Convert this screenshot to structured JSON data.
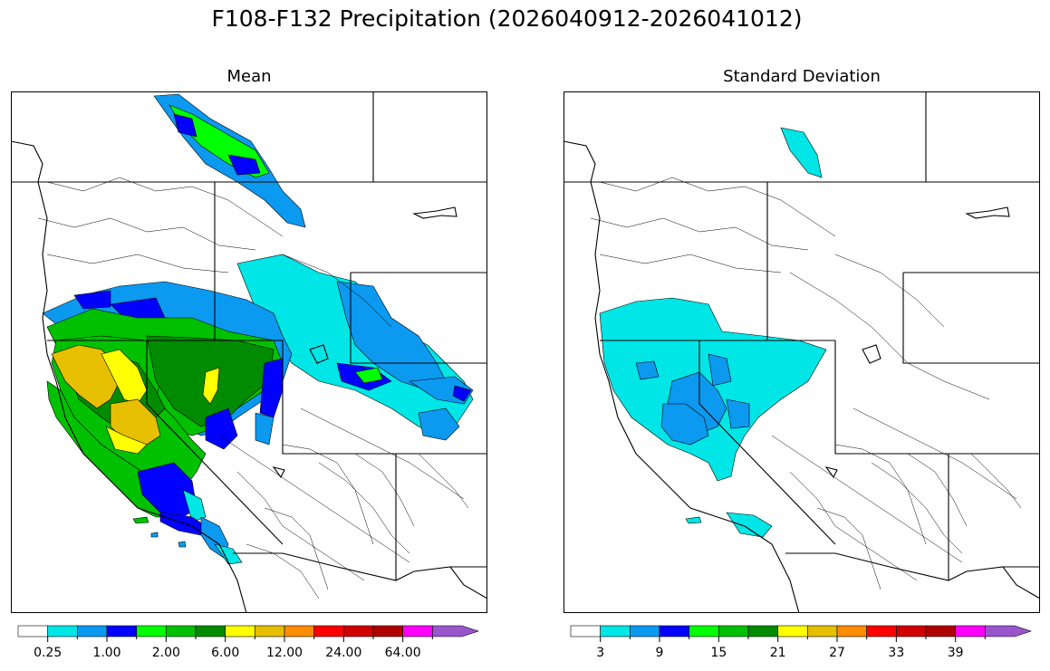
{
  "title": "F108-F132 Precipitation (2026040912-2026041012)",
  "panels": [
    {
      "title": "Mean"
    },
    {
      "title": "Standard Deviation"
    }
  ],
  "colors": {
    "white": "#ffffff",
    "cyan": "#00e5e5",
    "sky": "#0c99f0",
    "blue": "#0000ff",
    "lime": "#00ff00",
    "green": "#00c000",
    "darkgreen": "#008b00",
    "yellow": "#ffff00",
    "gold": "#e5bf00",
    "orange": "#ff8c00",
    "red": "#ff0000",
    "crimson": "#d00000",
    "darkred": "#b00000",
    "magenta": "#ff00ff",
    "purple": "#9955cc"
  },
  "colorbars": {
    "mean": {
      "colors": [
        "#ffffff",
        "#00e5e5",
        "#0c99f0",
        "#0000ff",
        "#00ff00",
        "#00c000",
        "#008b00",
        "#ffff00",
        "#e5bf00",
        "#ff8c00",
        "#ff0000",
        "#d00000",
        "#b00000",
        "#ff00ff",
        "#9955cc"
      ],
      "labels": [
        "0.25",
        "1.00",
        "2.00",
        "6.00",
        "12.00",
        "24.00",
        "64.00"
      ]
    },
    "std": {
      "colors": [
        "#ffffff",
        "#00e5e5",
        "#0c99f0",
        "#0000ff",
        "#00ff00",
        "#00c000",
        "#008b00",
        "#ffff00",
        "#e5bf00",
        "#ff8c00",
        "#ff0000",
        "#d00000",
        "#b00000",
        "#ff00ff",
        "#9955cc"
      ],
      "labels": [
        "3",
        "9",
        "15",
        "21",
        "27",
        "33",
        "39"
      ]
    }
  }
}
